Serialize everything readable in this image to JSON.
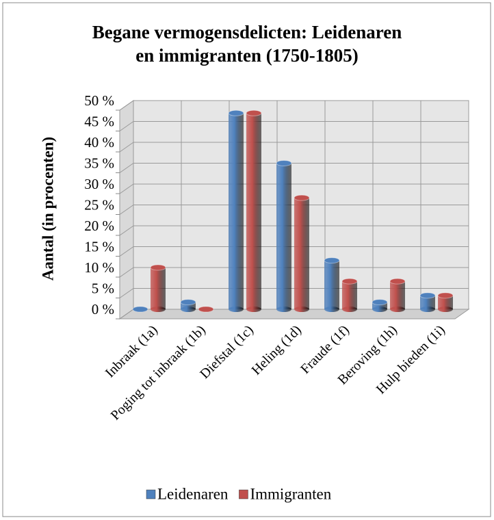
{
  "chart_data": {
    "type": "bar",
    "title": "Begane vermogensdelicten: Leidenaren en immigranten (1750-1805)",
    "title_lines": [
      "Begane vermogensdelicten: Leidenaren",
      "en immigranten (1750-1805)"
    ],
    "y_label": "Aantal (in procenten)",
    "categories": [
      "Inbraak (1a)",
      "Poging tot inbraak (1b)",
      "Diefstal (1c)",
      "Heling (1d)",
      "Fraude (1f)",
      "Beroving (1h)",
      "Hulp bieden (1i)"
    ],
    "series": [
      {
        "name": "Leidenaren",
        "color": "#4f81bd",
        "values": [
          0,
          1.7,
          47,
          35,
          11.7,
          1.7,
          3.3
        ]
      },
      {
        "name": "Immigranten",
        "color": "#c0504d",
        "values": [
          10,
          0,
          47,
          26.7,
          6.7,
          6.7,
          3.3
        ]
      }
    ],
    "ylim": [
      0,
      50
    ],
    "yticks": [
      {
        "value": 0,
        "label": "0 %"
      },
      {
        "value": 5,
        "label": "5 %"
      },
      {
        "value": 10,
        "label": "10 %"
      },
      {
        "value": 15,
        "label": "15 %"
      },
      {
        "value": 20,
        "label": "20 %"
      },
      {
        "value": 25,
        "label": "25 %"
      },
      {
        "value": 30,
        "label": "30 %"
      },
      {
        "value": 35,
        "label": "35 %"
      },
      {
        "value": 40,
        "label": "40 %"
      },
      {
        "value": 45,
        "label": "45 %"
      },
      {
        "value": 50,
        "label": "50 %"
      }
    ],
    "grid": true,
    "legend": "bottom"
  }
}
